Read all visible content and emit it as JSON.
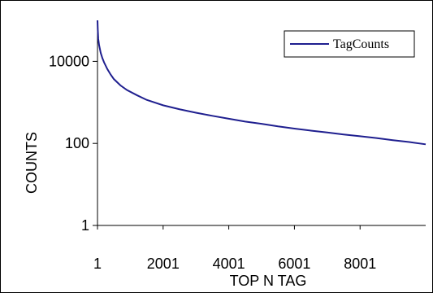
{
  "chart_data": {
    "type": "line",
    "title": "",
    "xlabel": "TOP  N TAG",
    "ylabel": "COUNTS",
    "x_scale": "linear",
    "y_scale": "log",
    "xlim": [
      1,
      10000
    ],
    "ylim": [
      1,
      100000
    ],
    "x_ticks": [
      "1",
      "2001",
      "4001",
      "6001",
      "8001"
    ],
    "x_tick_values": [
      1,
      2001,
      4001,
      6001,
      8001
    ],
    "y_ticks": [
      "1",
      "100",
      "10000"
    ],
    "y_tick_values": [
      1,
      100,
      10000
    ],
    "grid": false,
    "legend": "top-right",
    "series": [
      {
        "name": "TagCounts",
        "color": "#1f1f8f",
        "x": [
          1,
          10,
          25,
          50,
          100,
          150,
          200,
          300,
          400,
          500,
          700,
          900,
          1200,
          1500,
          2001,
          2500,
          3000,
          3500,
          4001,
          4500,
          5000,
          5500,
          6001,
          6500,
          7000,
          7500,
          8001,
          8500,
          9000,
          9500,
          10000
        ],
        "values": [
          100000,
          60000,
          35000,
          25000,
          16000,
          12000,
          9500,
          6500,
          4800,
          3700,
          2600,
          2000,
          1500,
          1150,
          850,
          680,
          560,
          470,
          400,
          340,
          300,
          260,
          230,
          205,
          185,
          165,
          150,
          135,
          120,
          108,
          95
        ]
      }
    ]
  }
}
